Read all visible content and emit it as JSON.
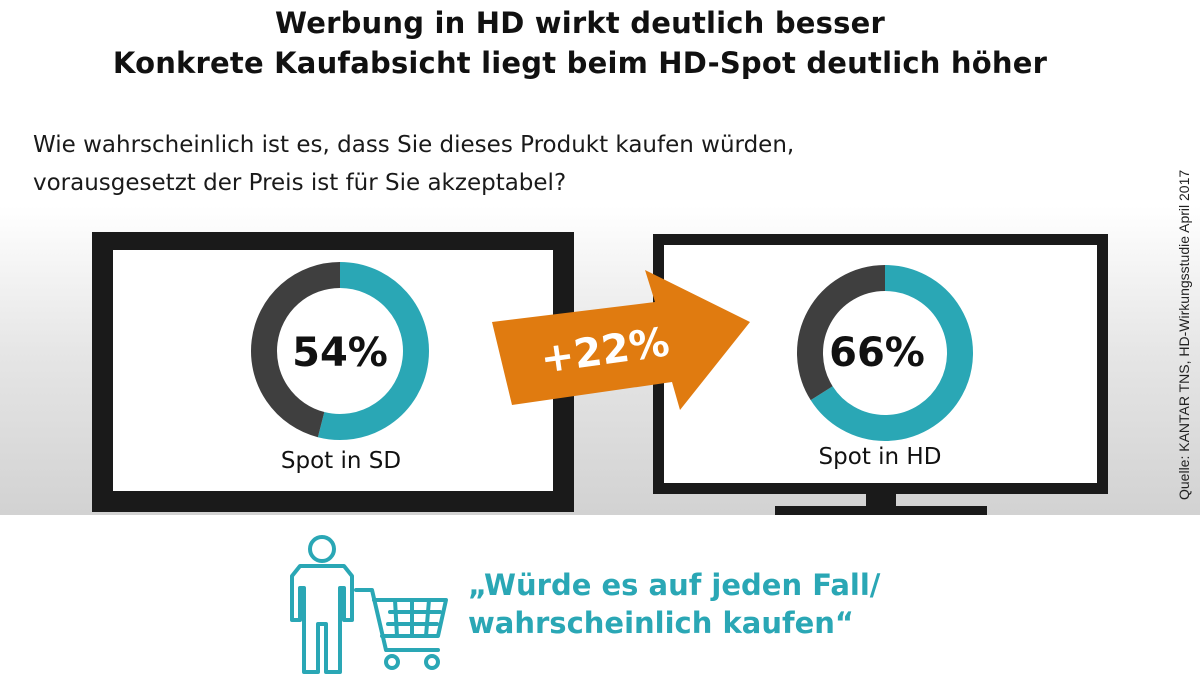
{
  "header": {
    "title": "Werbung in HD wirkt deutlich besser",
    "subtitle": "Konkrete Kaufabsicht liegt beim HD-Spot deutlich höher"
  },
  "question": {
    "line1": "Wie wahrscheinlich ist es, dass Sie dieses Produkt kaufen würden,",
    "line2": "vorausgesetzt der Preis ist für Sie akzeptabel?"
  },
  "source": "Quelle: KANTAR TNS, HD-Wirkungsstudie April 2017",
  "change_label": "+22%",
  "quote": {
    "line1": "„Würde es auf jeden Fall/",
    "line2": "wahrscheinlich kaufen“"
  },
  "icons": [
    "person-icon",
    "shopping-cart-icon",
    "arrow-icon"
  ],
  "colors": {
    "teal": "#2aa7b5",
    "dark_gray": "#3f3f3f",
    "orange": "#e07b10",
    "tv_frame": "#1a1a1a"
  },
  "chart_data": [
    {
      "type": "pie",
      "title": "Spot in SD",
      "slices": [
        {
          "label": "",
          "value": 54,
          "color": "#2aa7b5"
        },
        {
          "label": "",
          "value": 46,
          "color": "#3f3f3f"
        }
      ],
      "value_label": "54%"
    },
    {
      "type": "pie",
      "title": "Spot in HD",
      "slices": [
        {
          "label": "",
          "value": 66,
          "color": "#2aa7b5"
        },
        {
          "label": "",
          "value": 34,
          "color": "#3f3f3f"
        }
      ],
      "value_label": "66%"
    }
  ]
}
